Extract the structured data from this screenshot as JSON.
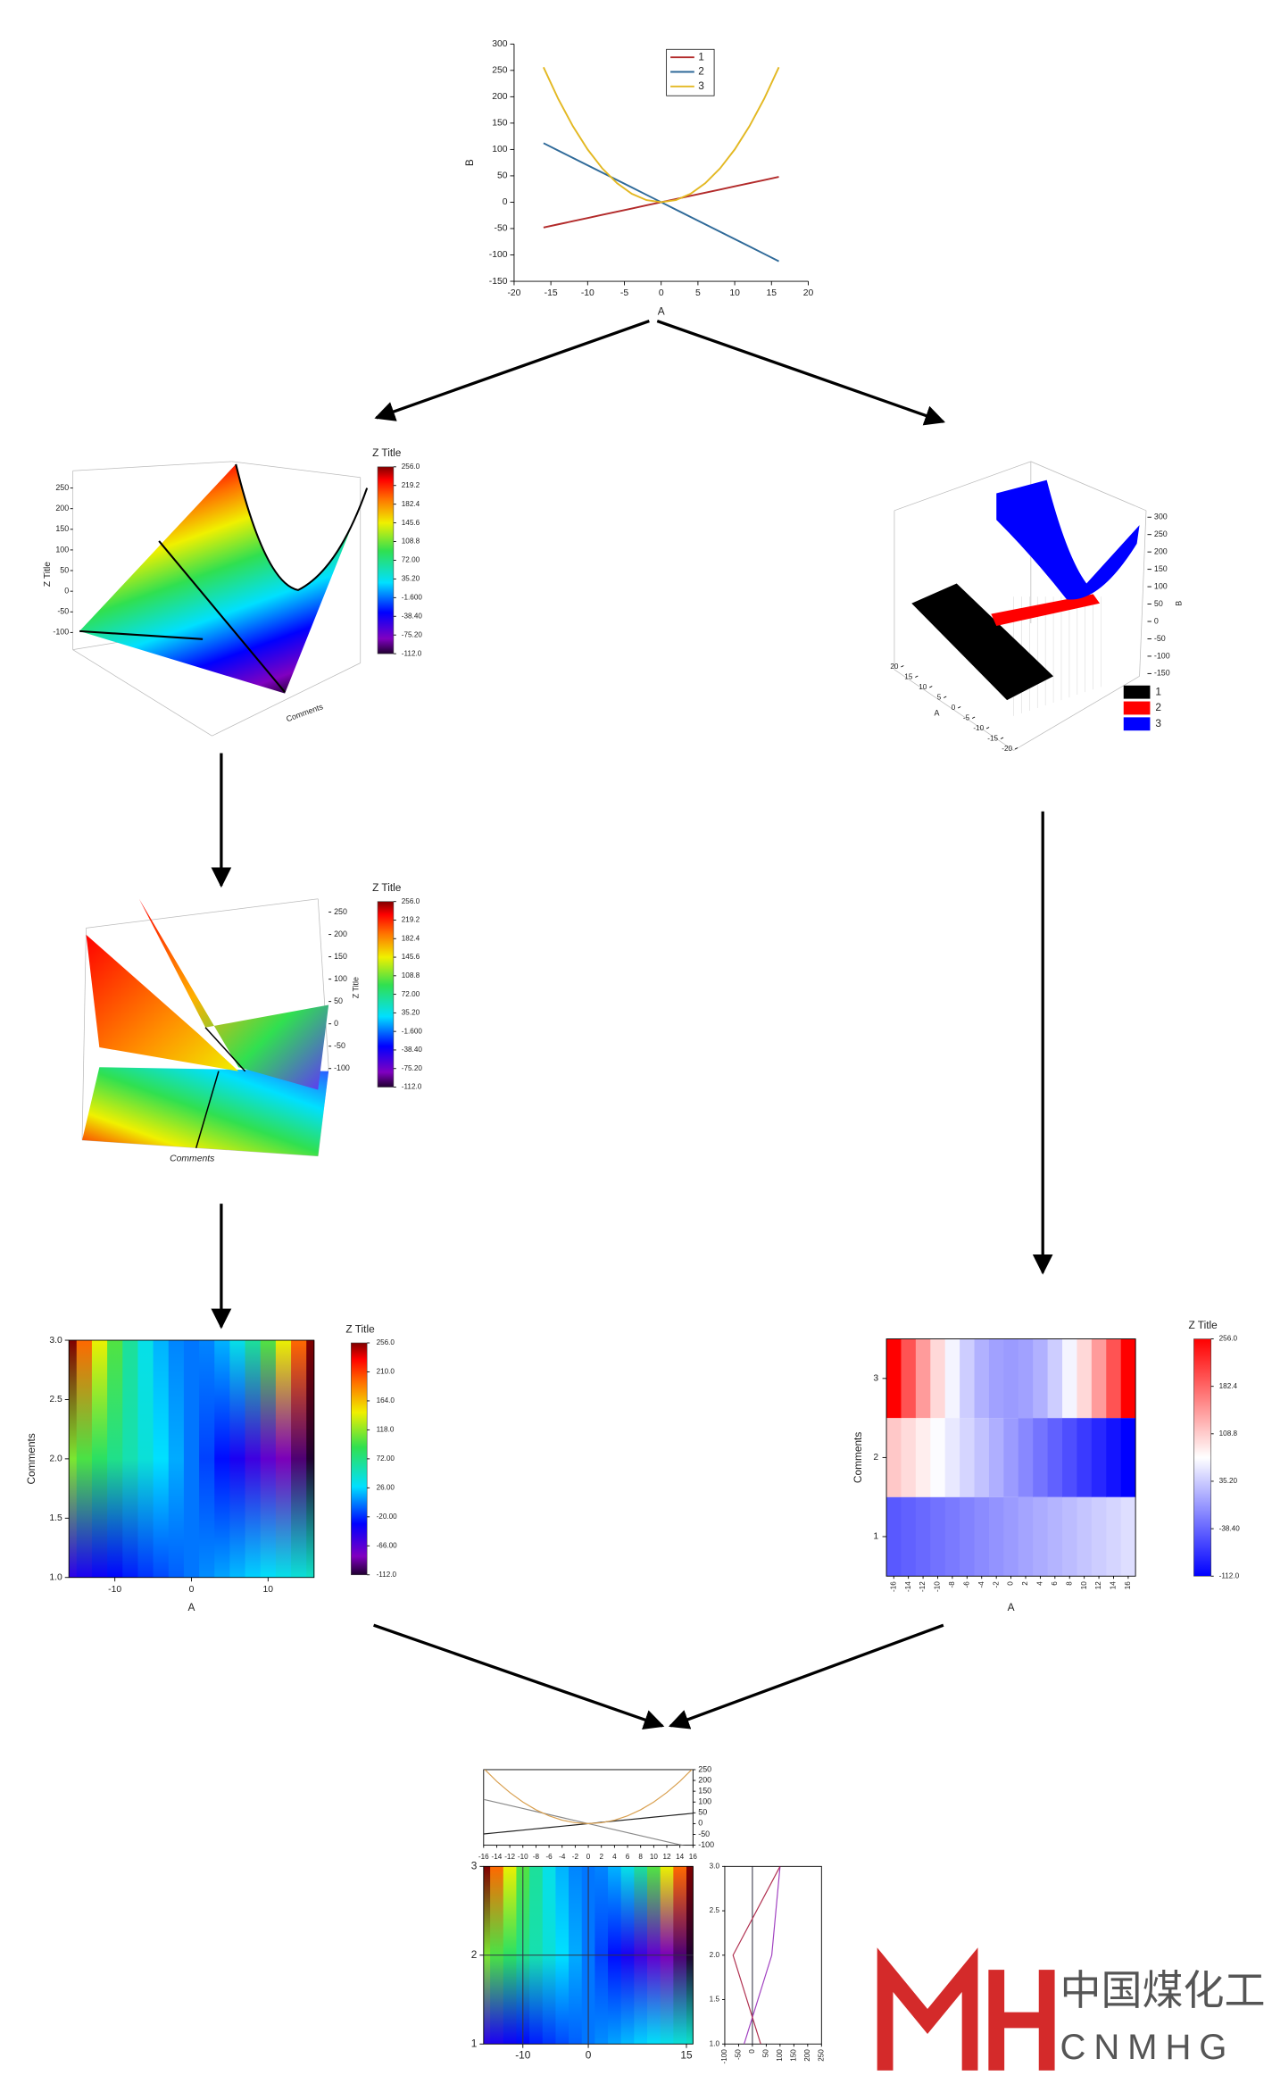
{
  "chart_data": [
    {
      "type": "line",
      "xlabel": "A",
      "ylabel": "B",
      "x": [
        -16,
        -14,
        -12,
        -10,
        -8,
        -6,
        -4,
        -2,
        0,
        2,
        4,
        6,
        8,
        10,
        12,
        14,
        16
      ],
      "xlim": [
        -20,
        20
      ],
      "xticks": [
        -20,
        -15,
        -10,
        -5,
        0,
        5,
        10,
        15,
        20
      ],
      "ylim": [
        -150,
        300
      ],
      "yticks": [
        -150,
        -100,
        -50,
        0,
        50,
        100,
        150,
        200,
        250,
        300
      ],
      "legend": "upper center",
      "series": [
        {
          "name": "1",
          "color": "#b22a2a",
          "values": [
            -48,
            -42,
            -36,
            -30,
            -24,
            -18,
            -12,
            -6,
            0,
            6,
            12,
            18,
            24,
            30,
            36,
            42,
            48
          ]
        },
        {
          "name": "2",
          "color": "#2f6a99",
          "values": [
            112,
            98,
            84,
            70,
            56,
            42,
            28,
            14,
            0,
            -14,
            -28,
            -42,
            -56,
            -70,
            -84,
            -98,
            -112
          ]
        },
        {
          "name": "3",
          "color": "#e3b822",
          "values": [
            256,
            196,
            144,
            100,
            64,
            36,
            16,
            4,
            0,
            4,
            16,
            36,
            64,
            100,
            144,
            196,
            256
          ]
        }
      ]
    },
    {
      "type": "surface3d",
      "zlabel": "Z Title",
      "xlabel": "Comments",
      "zlim": [
        -100,
        250
      ],
      "zticks": [
        -100,
        -50,
        0,
        50,
        100,
        150,
        200,
        250
      ],
      "colorbar_title": "Z Title",
      "colorbar_lim": [
        -112,
        256
      ],
      "colorbar_ticks": [
        {
          "value": 256,
          "label": "256.0"
        },
        219.2,
        182.4,
        145.6,
        108.8,
        {
          "value": 72,
          "label": "72.00"
        },
        {
          "value": 35.2,
          "label": "35.20"
        },
        {
          "value": -1.6,
          "label": "-1.600"
        },
        {
          "value": -38.4,
          "label": "-38.40"
        },
        {
          "value": -75.2,
          "label": "-75.20"
        },
        {
          "value": -112,
          "label": "-112.0"
        }
      ]
    },
    {
      "type": "bar3d",
      "xlabel": "A",
      "ylabel": "B",
      "xlim": [
        -20,
        20
      ],
      "xticks": [
        -20,
        -15,
        -10,
        -5,
        0,
        5,
        10,
        15,
        20
      ],
      "ylim": [
        -150,
        300
      ],
      "yticks": [
        -150,
        -100,
        -50,
        0,
        50,
        100,
        150,
        200,
        250,
        300
      ],
      "series": [
        {
          "name": "1",
          "color": "#000000"
        },
        {
          "name": "2",
          "color": "#ff0000"
        },
        {
          "name": "3",
          "color": "#0000ff"
        }
      ]
    },
    {
      "type": "surface3d",
      "zlabel": "Z Title",
      "xlabel": "Comments",
      "zlim": [
        -100,
        250
      ],
      "zticks": [
        -100,
        -50,
        0,
        50,
        100,
        150,
        200,
        250
      ],
      "colorbar_title": "Z Title",
      "colorbar_lim": [
        -112,
        256
      ],
      "colorbar_ticks": [
        {
          "value": 256,
          "label": "256.0"
        },
        219.2,
        182.4,
        145.6,
        108.8,
        {
          "value": 72,
          "label": "72.00"
        },
        {
          "value": 35.2,
          "label": "35.20"
        },
        {
          "value": -1.6,
          "label": "-1.600"
        },
        {
          "value": -38.4,
          "label": "-38.40"
        },
        {
          "value": -75.2,
          "label": "-75.20"
        },
        {
          "value": -112,
          "label": "-112.0"
        }
      ]
    },
    {
      "type": "contour",
      "xlabel": "A",
      "ylabel": "Comments",
      "xlim": [
        -16,
        16
      ],
      "xticks": [
        -10,
        0,
        10
      ],
      "ylim": [
        1,
        3
      ],
      "yticks": [
        {
          "value": 1,
          "label": "1.0"
        },
        1.5,
        {
          "value": 2,
          "label": "2.0"
        },
        2.5,
        {
          "value": 3,
          "label": "3.0"
        }
      ],
      "colorbar_title": "Z Title",
      "colorbar_lim": [
        -112,
        256
      ],
      "colorbar_ticks": [
        {
          "value": 256,
          "label": "256.0"
        },
        {
          "value": 210,
          "label": "210.0"
        },
        {
          "value": 164,
          "label": "164.0"
        },
        {
          "value": 118,
          "label": "118.0"
        },
        {
          "value": 72,
          "label": "72.00"
        },
        {
          "value": 26,
          "label": "26.00"
        },
        {
          "value": -20,
          "label": "-20.00"
        },
        {
          "value": -66,
          "label": "-66.00"
        },
        {
          "value": -112,
          "label": "-112.0"
        }
      ]
    },
    {
      "type": "heatmap",
      "xlabel": "A",
      "ylabel": "Comments",
      "categories": [
        "1",
        "2",
        "3"
      ],
      "colorbar_title": "Z Title",
      "colorbar_lim": [
        -112,
        256
      ],
      "colorbar_ticks": [
        {
          "value": 256,
          "label": "256.0"
        },
        182.4,
        108.8,
        {
          "value": 35.2,
          "label": "35.20"
        },
        {
          "value": -38.4,
          "label": "-38.40"
        },
        {
          "value": -112,
          "label": "-112.0"
        }
      ]
    },
    {
      "type": "composite",
      "series_colors": [
        "#222222",
        "#8a8a8a",
        "#d9a050"
      ],
      "grid": true,
      "top_xticks": [
        -16,
        -14,
        -12,
        -10,
        -8,
        -6,
        -4,
        -2,
        0,
        2,
        4,
        6,
        8,
        10,
        12,
        14,
        16
      ],
      "top_ylim": [
        -100,
        250
      ],
      "top_yticks": [
        -100,
        -50,
        0,
        50,
        100,
        150,
        200,
        250
      ],
      "xlim": [
        -16,
        16
      ],
      "xticks": [
        -10,
        0,
        15
      ],
      "ylim": [
        1,
        3
      ],
      "yticks": [
        1,
        2,
        3
      ],
      "side_xlim": [
        -100,
        250
      ],
      "side_xticks": [
        -100,
        -50,
        0,
        50,
        100,
        150,
        200,
        250
      ],
      "side_yticks": [
        {
          "value": 1,
          "label": "1.0"
        },
        1.5,
        {
          "value": 2,
          "label": "2.0"
        },
        2.5,
        {
          "value": 3,
          "label": "3.0"
        }
      ]
    }
  ],
  "watermark": {
    "cn": "中国煤化工",
    "en": "CNMHG"
  }
}
